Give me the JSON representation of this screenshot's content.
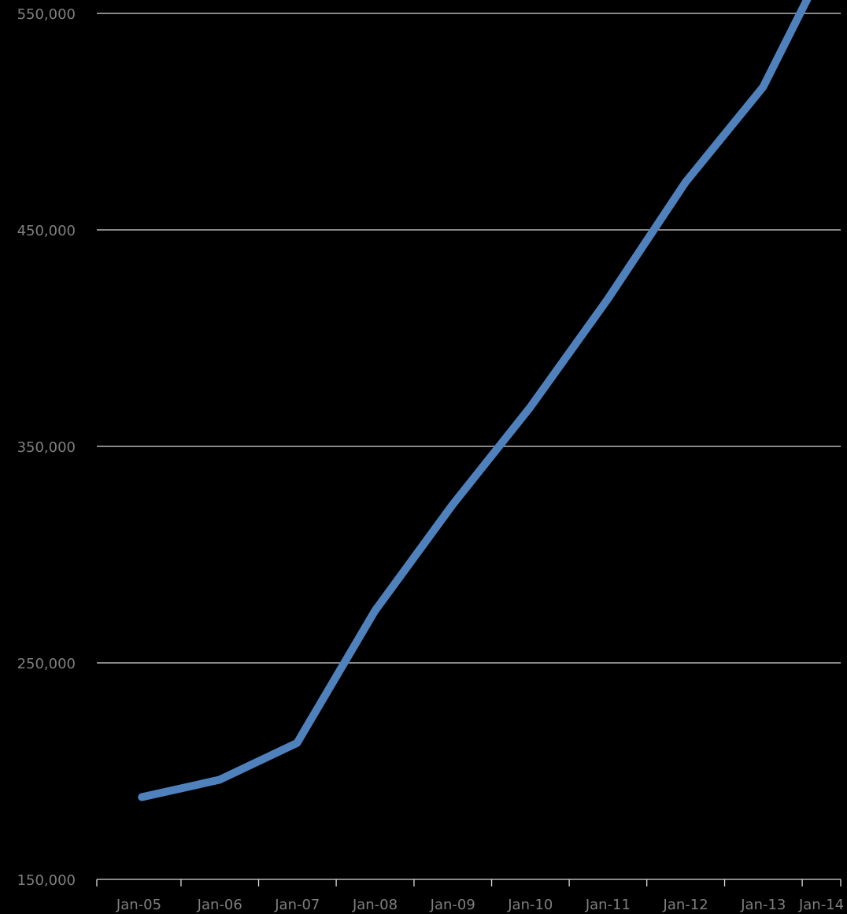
{
  "chart_data": {
    "type": "line",
    "title": "",
    "xlabel": "",
    "ylabel": "",
    "x_tick_labels": [
      "Jan-05",
      "Jan-06",
      "Jan-07",
      "Jan-08",
      "Jan-09",
      "Jan-10",
      "Jan-11",
      "Jan-12",
      "Jan-13",
      "Jan-14"
    ],
    "y_tick_values": [
      150000,
      250000,
      350000,
      450000,
      550000
    ],
    "y_tick_labels": [
      "150,000",
      "250,000",
      "350,000",
      "450,000",
      "550,000"
    ],
    "ylim": [
      150000,
      550000
    ],
    "xlim": [
      "2004-12-01",
      "2014-07-01"
    ],
    "grid": true,
    "legend": "none",
    "series": [
      {
        "color": "#4f81bd",
        "x": [
          "2005-07-01",
          "2006-07-01",
          "2007-07-01",
          "2008-07-01",
          "2009-07-01",
          "2010-07-01",
          "2011-07-01",
          "2012-07-01",
          "2013-07-01",
          "2014-02-01"
        ],
        "values": [
          188000,
          196000,
          213000,
          274000,
          323000,
          368000,
          418000,
          472000,
          516000,
          558000
        ]
      }
    ],
    "colors": {
      "background": "#000000",
      "gridline": "#d9d9d9",
      "axis": "#d9d9d9",
      "tick_text": "#7f7f7f",
      "series": "#4f81bd"
    }
  }
}
